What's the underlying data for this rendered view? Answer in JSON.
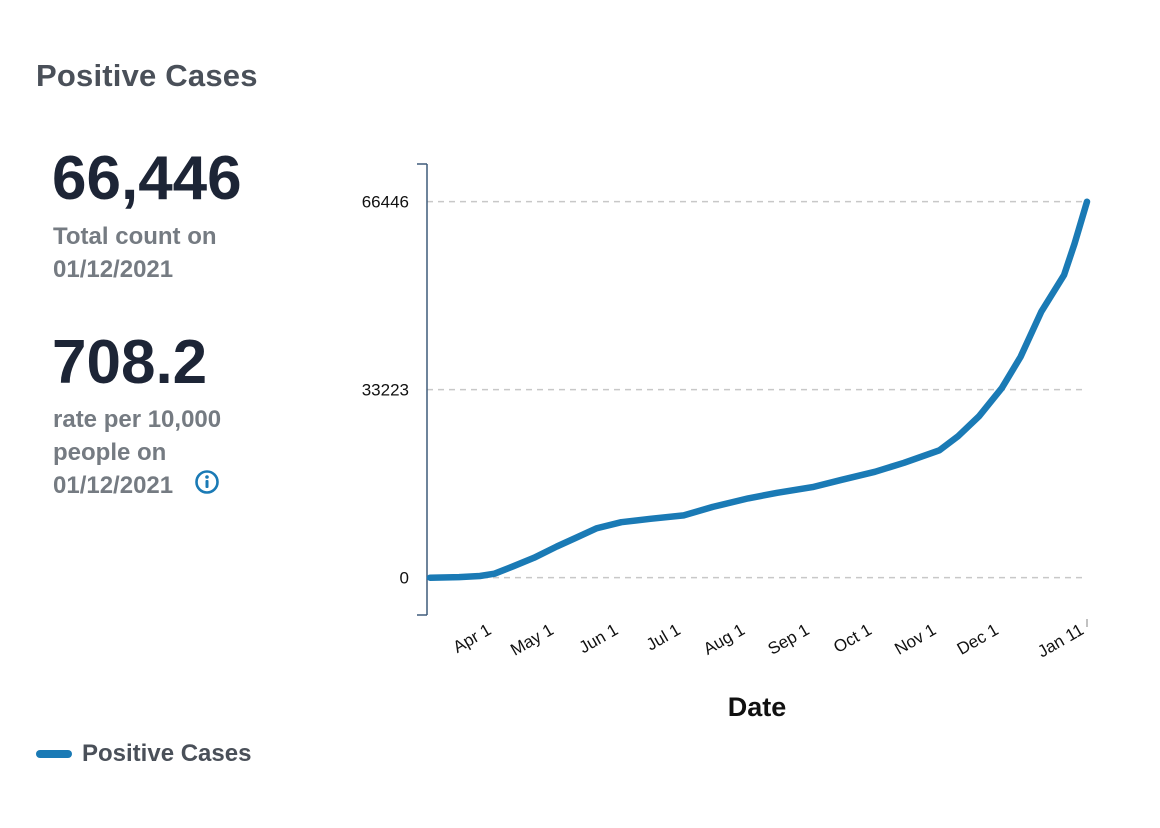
{
  "panel": {
    "title": "Positive Cases",
    "total": {
      "value": "66,446",
      "caption_line1": "Total count on",
      "caption_line2": "01/12/2021"
    },
    "rate": {
      "value": "708.2",
      "caption_line1": "rate per 10,000",
      "caption_line2": "people on",
      "caption_line3": "01/12/2021"
    },
    "info_icon": "info-circle-icon"
  },
  "legend": {
    "label": "Positive Cases"
  },
  "colors": {
    "series": "#1a7ab5",
    "grid": "#c8c8c8",
    "axis": "#3f5b7a",
    "text": "#111111"
  },
  "chart_data": {
    "type": "line",
    "title": "",
    "xlabel": "Date",
    "ylabel": "",
    "x_ticks": [
      "Apr 1",
      "May 1",
      "Jun 1",
      "Jul 1",
      "Aug 1",
      "Sep 1",
      "Oct 1",
      "Nov 1",
      "Dec 1",
      "Jan 11"
    ],
    "y_ticks": [
      0,
      33223,
      66446
    ],
    "ylim": [
      -6600,
      73100
    ],
    "grid": "horizontal dashed",
    "legend_position": "bottom-left",
    "series": [
      {
        "name": "Positive Cases",
        "x": [
          "2020-03-01",
          "2020-03-15",
          "2020-03-25",
          "2020-04-01",
          "2020-04-10",
          "2020-04-20",
          "2020-05-01",
          "2020-05-10",
          "2020-05-20",
          "2020-06-01",
          "2020-06-15",
          "2020-07-01",
          "2020-07-15",
          "2020-08-01",
          "2020-08-15",
          "2020-09-01",
          "2020-09-15",
          "2020-10-01",
          "2020-10-15",
          "2020-11-01",
          "2020-11-10",
          "2020-11-20",
          "2020-12-01",
          "2020-12-10",
          "2020-12-20",
          "2020-12-31",
          "2021-01-05",
          "2021-01-11"
        ],
        "values": [
          0,
          100,
          300,
          700,
          2000,
          3500,
          5500,
          7000,
          8700,
          9800,
          10400,
          11000,
          12500,
          14000,
          15000,
          16000,
          17300,
          18700,
          20300,
          22500,
          25000,
          28500,
          33500,
          39000,
          47000,
          53500,
          59000,
          66446
        ]
      }
    ]
  }
}
